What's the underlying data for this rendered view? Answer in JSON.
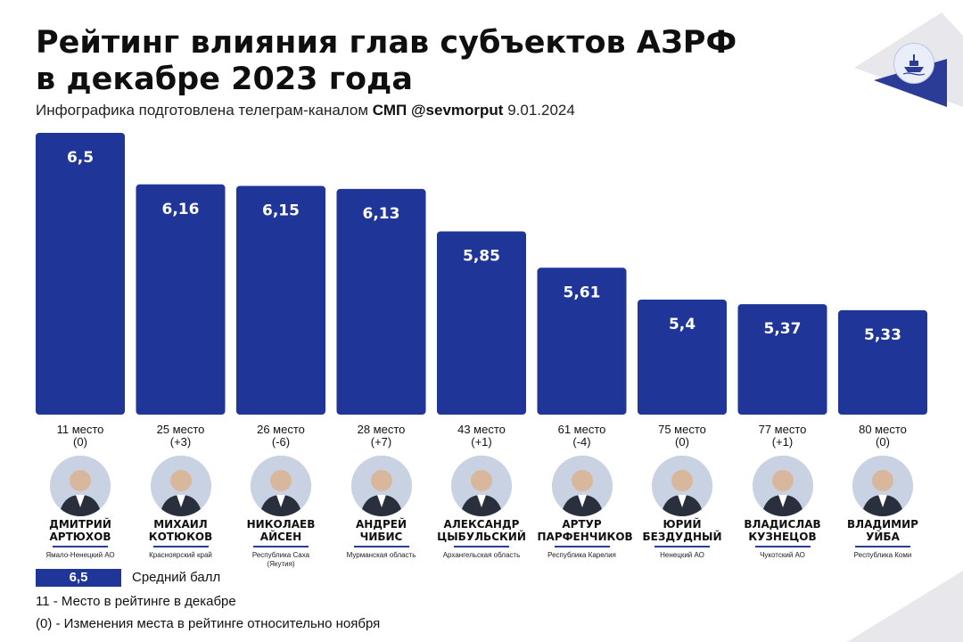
{
  "header": {
    "title_line1": "Рейтинг влияния глав субъектов АЗРФ",
    "title_line2": "в декабре 2023 года",
    "subtitle_prefix": "Инфографика подготовлена телеграм-каналом",
    "subtitle_channel": "СМП @sevmorput",
    "subtitle_date": "9.01.2024"
  },
  "colors": {
    "bar": "#1f3597",
    "accent": "#2b3c97",
    "decor": "#e8e8ec"
  },
  "logo": {
    "icon": "ship-icon"
  },
  "chart_data": {
    "type": "bar",
    "categories": [
      "ДМИТРИЙ АРТЮХОВ",
      "МИХАИЛ КОТЮКОВ",
      "НИКОЛАЕВ АЙСЕН",
      "АНДРЕЙ ЧИБИС",
      "АЛЕКСАНДР ЦЫБУЛЬСКИЙ",
      "АРТУР ПАРФЕНЧИКОВ",
      "ЮРИЙ БЕЗДУДНЫЙ",
      "ВЛАДИСЛАВ КУЗНЕЦОВ",
      "ВЛАДИМИР УЙБА"
    ],
    "values": [
      6.5,
      6.16,
      6.15,
      6.13,
      5.85,
      5.61,
      5.4,
      5.37,
      5.33
    ],
    "value_labels": [
      "6,5",
      "6,16",
      "6,15",
      "6,13",
      "5,85",
      "5,61",
      "5,4",
      "5,37",
      "5,33"
    ],
    "title": "Рейтинг влияния глав субъектов АЗРФ в декабре 2023 года",
    "grid": false,
    "legend": "bottom-left"
  },
  "people": [
    {
      "place": "11 место",
      "change": "(0)",
      "name1": "ДМИТРИЙ",
      "name2": "АРТЮХОВ",
      "region": "Ямало-Ненецкий АО",
      "region2": ""
    },
    {
      "place": "25 место",
      "change": "(+3)",
      "name1": "МИХАИЛ",
      "name2": "КОТЮКОВ",
      "region": "Красноярский край",
      "region2": ""
    },
    {
      "place": "26 место",
      "change": "(-6)",
      "name1": "НИКОЛАЕВ",
      "name2": "АЙСЕН",
      "region": "Республика Саха",
      "region2": "(Якутия)"
    },
    {
      "place": "28 место",
      "change": "(+7)",
      "name1": "АНДРЕЙ",
      "name2": "ЧИБИС",
      "region": "Мурманская область",
      "region2": ""
    },
    {
      "place": "43 место",
      "change": "(+1)",
      "name1": "АЛЕКСАНДР",
      "name2": "ЦЫБУЛЬСКИЙ",
      "region": "Архангельская область",
      "region2": ""
    },
    {
      "place": "61 место",
      "change": "(-4)",
      "name1": "АРТУР",
      "name2": "ПАРФЕНЧИКОВ",
      "region": "Республика Карелия",
      "region2": ""
    },
    {
      "place": "75 место",
      "change": "(0)",
      "name1": "ЮРИЙ",
      "name2": "БЕЗДУДНЫЙ",
      "region": "Ненецкий АО",
      "region2": ""
    },
    {
      "place": "77 место",
      "change": "(+1)",
      "name1": "ВЛАДИСЛАВ",
      "name2": "КУЗНЕЦОВ",
      "region": "Чукотский АО",
      "region2": ""
    },
    {
      "place": "80 место",
      "change": "(0)",
      "name1": "ВЛАДИМИР",
      "name2": "УЙБА",
      "region": "Республика Коми",
      "region2": ""
    }
  ],
  "legend": {
    "badge": "6,5",
    "avg_label": "Средний балл",
    "rank_label": "11 - Место в рейтинге в декабре",
    "change_label": "(0) - Изменения места в рейтинге относительно ноября"
  }
}
